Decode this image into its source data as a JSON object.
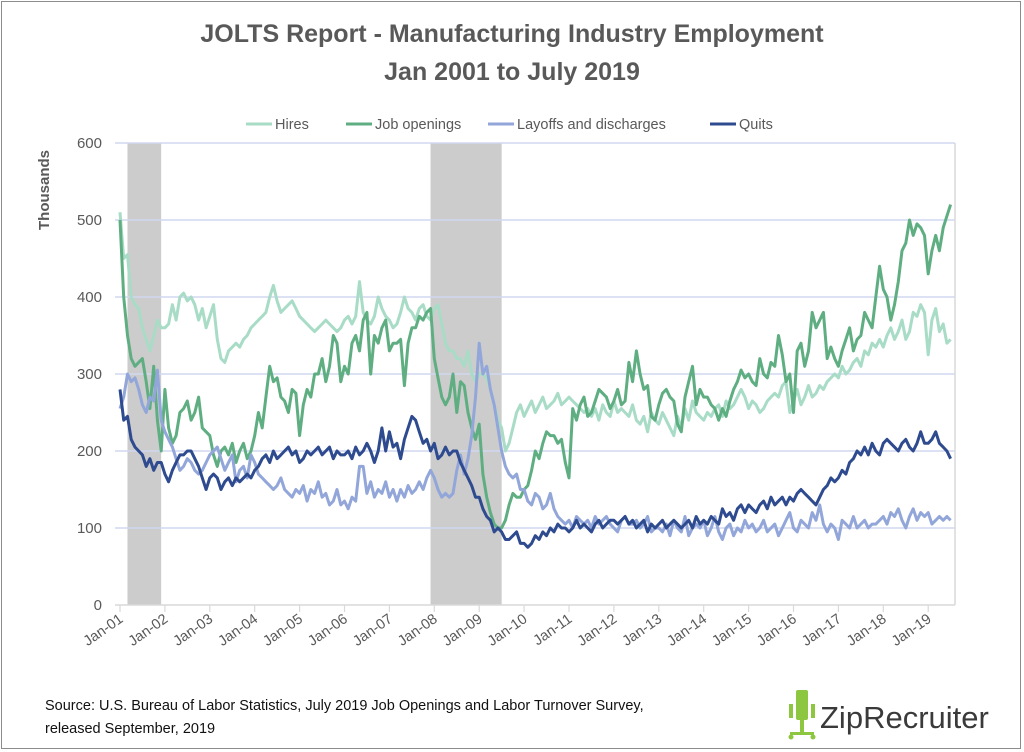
{
  "chart_data": {
    "type": "line",
    "title": "JOLTS Report - Manufacturing Industry Employment",
    "subtitle": "Jan 2001 to July 2019",
    "xlabel": "",
    "ylabel": "Thousands",
    "ylim": [
      0,
      600
    ],
    "yticks": [
      "0",
      "100",
      "200",
      "300",
      "400",
      "500",
      "600"
    ],
    "x_start": "Jan-01",
    "x_end": "Jul-19",
    "x_frequency": "monthly",
    "xtick_labels": [
      "Jan-01",
      "Jan-02",
      "Jan-03",
      "Jan-04",
      "Jan-05",
      "Jan-06",
      "Jan-07",
      "Jan-08",
      "Jan-09",
      "Jan-10",
      "Jan-11",
      "Jan-12",
      "Jan-13",
      "Jan-14",
      "Jan-15",
      "Jan-16",
      "Jan-17",
      "Jan-18",
      "Jan-19"
    ],
    "grid": "horizontal",
    "legend_position": "top",
    "recession_shading": [
      {
        "start": "Mar-01",
        "end": "Nov-01",
        "color": "#cccccc"
      },
      {
        "start": "Dec-07",
        "end": "Jun-09",
        "color": "#cccccc"
      }
    ],
    "series": [
      {
        "name": "Hires",
        "color": "#a8dcc6",
        "values": [
          510,
          450,
          455,
          400,
          390,
          385,
          360,
          345,
          330,
          350,
          370,
          360,
          360,
          365,
          390,
          370,
          400,
          405,
          395,
          400,
          390,
          370,
          385,
          360,
          375,
          390,
          345,
          320,
          315,
          330,
          335,
          340,
          335,
          345,
          350,
          360,
          365,
          370,
          375,
          380,
          400,
          415,
          395,
          380,
          385,
          390,
          395,
          385,
          375,
          370,
          365,
          360,
          355,
          360,
          365,
          370,
          365,
          360,
          355,
          360,
          370,
          375,
          365,
          375,
          420,
          380,
          370,
          365,
          375,
          400,
          385,
          375,
          370,
          360,
          365,
          380,
          400,
          385,
          380,
          370,
          385,
          390,
          375,
          370,
          385,
          390,
          365,
          340,
          330,
          330,
          320,
          320,
          310,
          330,
          300,
          290,
          300,
          300,
          295,
          280,
          260,
          240,
          230,
          200,
          210,
          230,
          250,
          260,
          245,
          255,
          265,
          250,
          260,
          270,
          255,
          260,
          265,
          275,
          260,
          265,
          270,
          265,
          260,
          255,
          250,
          255,
          245,
          255,
          240,
          260,
          250,
          245,
          265,
          250,
          255,
          250,
          245,
          260,
          240,
          235,
          245,
          225,
          250,
          240,
          235,
          250,
          240,
          230,
          220,
          245,
          230,
          255,
          240,
          265,
          250,
          245,
          240,
          250,
          245,
          255,
          260,
          245,
          265,
          255,
          260,
          270,
          280,
          270,
          255,
          265,
          260,
          250,
          255,
          265,
          270,
          275,
          270,
          285,
          290,
          250,
          265,
          280,
          260,
          270,
          285,
          270,
          275,
          285,
          280,
          290,
          295,
          300,
          295,
          310,
          300,
          305,
          315,
          320,
          310,
          330,
          325,
          340,
          335,
          345,
          335,
          350,
          360,
          345,
          355,
          370,
          345,
          355,
          380,
          375,
          390,
          380,
          325,
          370,
          385,
          355,
          365,
          340,
          345
        ]
      },
      {
        "name": "Job openings",
        "color": "#5fae82",
        "values": [
          500,
          400,
          350,
          320,
          310,
          315,
          320,
          290,
          255,
          310,
          240,
          200,
          280,
          230,
          210,
          220,
          250,
          255,
          265,
          240,
          250,
          270,
          230,
          225,
          220,
          195,
          180,
          200,
          205,
          195,
          210,
          185,
          200,
          210,
          190,
          200,
          220,
          250,
          230,
          270,
          310,
          290,
          295,
          270,
          265,
          250,
          280,
          275,
          220,
          260,
          280,
          270,
          300,
          300,
          320,
          290,
          310,
          350,
          340,
          290,
          310,
          300,
          340,
          350,
          330,
          370,
          380,
          300,
          350,
          340,
          360,
          370,
          330,
          340,
          340,
          345,
          285,
          340,
          360,
          360,
          375,
          370,
          380,
          385,
          320,
          295,
          270,
          260,
          270,
          300,
          250,
          290,
          285,
          250,
          230,
          215,
          235,
          170,
          140,
          120,
          105,
          100,
          100,
          110,
          130,
          145,
          140,
          140,
          150,
          155,
          175,
          200,
          190,
          210,
          225,
          220,
          220,
          210,
          215,
          185,
          165,
          255,
          240,
          260,
          270,
          245,
          250,
          265,
          280,
          275,
          270,
          255,
          265,
          280,
          260,
          265,
          315,
          290,
          330,
          300,
          280,
          285,
          245,
          240,
          260,
          275,
          280,
          270,
          265,
          235,
          225,
          270,
          290,
          310,
          260,
          280,
          270,
          270,
          260,
          255,
          240,
          255,
          245,
          265,
          280,
          290,
          305,
          295,
          300,
          290,
          285,
          320,
          300,
          295,
          315,
          310,
          350,
          325,
          290,
          300,
          250,
          330,
          340,
          310,
          330,
          380,
          360,
          370,
          380,
          320,
          335,
          320,
          310,
          330,
          345,
          360,
          330,
          345,
          350,
          380,
          370,
          360,
          400,
          440,
          410,
          400,
          370,
          390,
          420,
          460,
          470,
          500,
          480,
          495,
          490,
          480,
          430,
          460,
          480,
          460,
          490,
          505,
          520
        ]
      },
      {
        "name": "Layoffs and discharges",
        "color": "#92a6d9",
        "values": [
          255,
          270,
          300,
          290,
          295,
          280,
          260,
          250,
          270,
          265,
          305,
          240,
          225,
          215,
          205,
          190,
          175,
          180,
          190,
          185,
          175,
          170,
          175,
          185,
          195,
          200,
          205,
          190,
          175,
          185,
          195,
          160,
          175,
          180,
          165,
          195,
          185,
          170,
          165,
          160,
          155,
          150,
          155,
          165,
          150,
          145,
          140,
          150,
          145,
          155,
          135,
          150,
          145,
          160,
          140,
          145,
          130,
          135,
          150,
          130,
          135,
          125,
          140,
          135,
          180,
          180,
          145,
          160,
          140,
          150,
          145,
          160,
          140,
          150,
          135,
          150,
          140,
          155,
          145,
          150,
          160,
          150,
          165,
          175,
          165,
          150,
          140,
          145,
          140,
          145,
          175,
          195,
          170,
          190,
          220,
          270,
          340,
          300,
          310,
          280,
          260,
          230,
          200,
          180,
          170,
          165,
          170,
          150,
          150,
          135,
          130,
          145,
          140,
          125,
          130,
          145,
          125,
          115,
          110,
          105,
          110,
          100,
          115,
          110,
          105,
          110,
          100,
          115,
          105,
          110,
          115,
          105,
          100,
          95,
          110,
          115,
          105,
          105,
          110,
          100,
          105,
          115,
          95,
          100,
          100,
          95,
          105,
          90,
          110,
          100,
          95,
          115,
          90,
          100,
          105,
          100,
          110,
          90,
          100,
          115,
          95,
          85,
          100,
          105,
          90,
          100,
          95,
          110,
          100,
          105,
          95,
          100,
          110,
          95,
          100,
          105,
          90,
          100,
          110,
          120,
          100,
          95,
          110,
          105,
          100,
          120,
          110,
          130,
          105,
          95,
          105,
          100,
          85,
          110,
          105,
          100,
          115,
          100,
          105,
          110,
          100,
          105,
          105,
          110,
          115,
          105,
          120,
          115,
          125,
          110,
          100,
          115,
          125,
          110,
          120,
          115,
          120,
          105,
          110,
          115,
          110,
          115,
          110
        ]
      },
      {
        "name": "Quits",
        "color": "#2f4b8f",
        "values": [
          280,
          240,
          245,
          215,
          205,
          200,
          195,
          180,
          190,
          175,
          185,
          185,
          170,
          160,
          175,
          185,
          195,
          195,
          200,
          200,
          190,
          180,
          165,
          150,
          165,
          170,
          165,
          150,
          160,
          165,
          155,
          165,
          160,
          165,
          170,
          165,
          175,
          180,
          190,
          195,
          185,
          200,
          190,
          195,
          200,
          205,
          195,
          200,
          185,
          190,
          200,
          195,
          200,
          205,
          195,
          200,
          205,
          190,
          200,
          195,
          195,
          200,
          190,
          205,
          195,
          200,
          210,
          200,
          185,
          200,
          230,
          200,
          225,
          205,
          210,
          190,
          215,
          230,
          245,
          240,
          225,
          210,
          215,
          200,
          210,
          190,
          195,
          205,
          195,
          200,
          200,
          185,
          175,
          165,
          155,
          140,
          140,
          125,
          115,
          110,
          95,
          100,
          95,
          85,
          85,
          90,
          95,
          80,
          80,
          75,
          80,
          90,
          85,
          95,
          90,
          100,
          95,
          105,
          100,
          100,
          95,
          100,
          110,
          100,
          105,
          100,
          95,
          105,
          110,
          100,
          105,
          110,
          110,
          105,
          110,
          115,
          105,
          110,
          100,
          105,
          110,
          95,
          105,
          100,
          105,
          110,
          100,
          105,
          110,
          105,
          100,
          105,
          110,
          100,
          115,
          105,
          110,
          105,
          115,
          110,
          105,
          125,
          115,
          120,
          110,
          125,
          130,
          120,
          130,
          125,
          120,
          130,
          135,
          125,
          140,
          130,
          135,
          140,
          130,
          140,
          135,
          145,
          150,
          145,
          140,
          135,
          130,
          140,
          150,
          155,
          165,
          160,
          165,
          175,
          170,
          185,
          190,
          200,
          195,
          205,
          195,
          210,
          200,
          195,
          210,
          215,
          210,
          205,
          200,
          210,
          215,
          205,
          200,
          210,
          225,
          210,
          210,
          215,
          225,
          210,
          205,
          200,
          190
        ]
      }
    ]
  },
  "footer": {
    "source_line1": "Source: U.S. Bureau of Labor Statistics, July 2019 Job Openings and Labor Turnover Survey,",
    "source_line2": "released September, 2019",
    "logo_text": "ZipRecruiter",
    "logo_color": "#8dc63f"
  }
}
